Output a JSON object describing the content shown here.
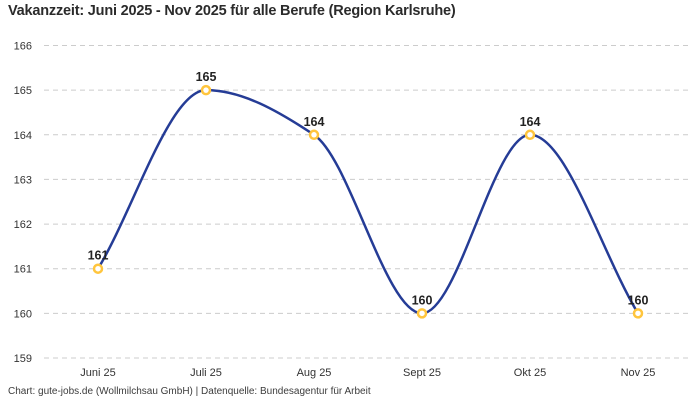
{
  "title": "Vakanzzeit: Juni 2025 - Nov 2025 für alle Berufe (Region Karlsruhe)",
  "footer": "Chart: gute-jobs.de (Wollmilchsau GmbH) | Datenquelle: Bundesagentur für Arbeit",
  "chart_data": {
    "type": "line",
    "title": "Vakanzzeit: Juni 2025 - Nov 2025 für alle Berufe (Region Karlsruhe)",
    "categories": [
      "Juni 25",
      "Juli 25",
      "Aug 25",
      "Sept 25",
      "Okt 25",
      "Nov 25"
    ],
    "values": [
      161,
      165,
      164,
      160,
      164,
      160
    ],
    "xlabel": "",
    "ylabel": "",
    "ylim": [
      159,
      166
    ],
    "yticks": [
      159,
      160,
      161,
      162,
      163,
      164,
      165,
      166
    ],
    "grid": "horizontal-dashed",
    "legend": "none",
    "smooth": true,
    "point_labels_visible": true,
    "colors": {
      "line": "#253c96",
      "marker_ring": "#ffc53d",
      "marker_fill": "#ffffff",
      "gridline": "#cccccc",
      "title_text": "#2b2b2b",
      "axis_text": "#333333",
      "point_label_text": "#222222",
      "footer_text": "#3c3c3c",
      "background": "#ffffff"
    }
  }
}
